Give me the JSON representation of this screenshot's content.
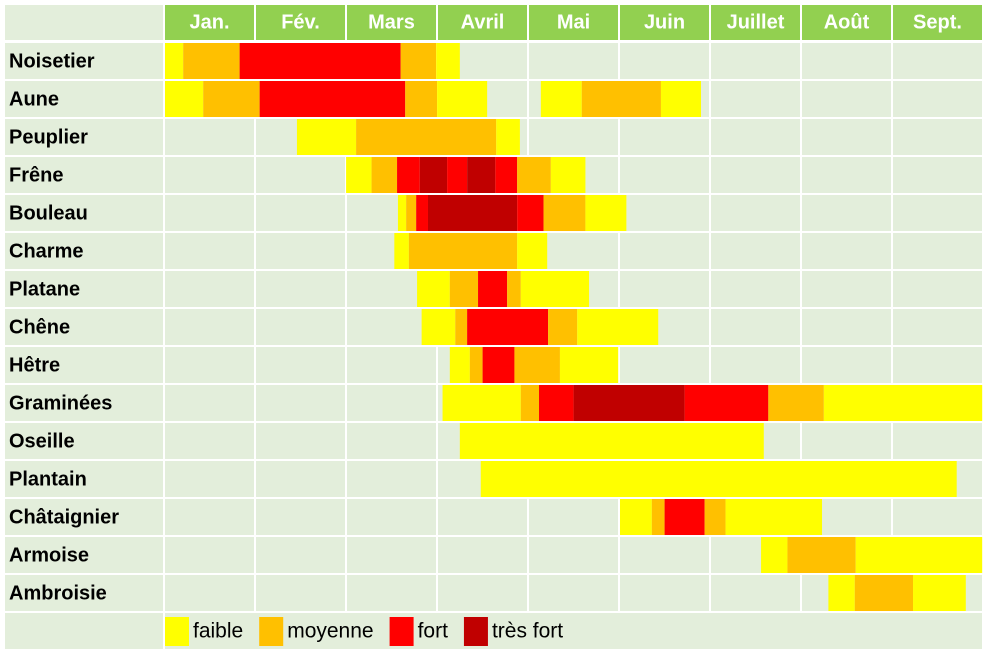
{
  "chart_data": {
    "type": "calendar",
    "categories": [
      "Jan.",
      "Fév.",
      "Mars",
      "Avril",
      "Mai",
      "Juin",
      "Juillet",
      "Août",
      "Sept."
    ],
    "xlim": [
      0,
      9
    ],
    "series": [
      {
        "name": "faible",
        "color": "#ffff00"
      },
      {
        "name": "moyenne",
        "color": "#ffc000"
      },
      {
        "name": "fort",
        "color": "#ff0000"
      },
      {
        "name": "très fort",
        "color": "#c00000"
      }
    ],
    "rows": [
      {
        "name": "Noisetier",
        "segments": [
          {
            "start": 0,
            "end": 0.2,
            "level": 0
          },
          {
            "start": 0.2,
            "end": 0.82,
            "level": 1
          },
          {
            "start": 0.82,
            "end": 2.59,
            "level": 2
          },
          {
            "start": 2.59,
            "end": 2.98,
            "level": 1
          },
          {
            "start": 2.98,
            "end": 3.24,
            "level": 0
          }
        ]
      },
      {
        "name": "Aune",
        "segments": [
          {
            "start": 0,
            "end": 0.42,
            "level": 0
          },
          {
            "start": 0.42,
            "end": 1.04,
            "level": 1
          },
          {
            "start": 1.04,
            "end": 2.64,
            "level": 2
          },
          {
            "start": 2.64,
            "end": 2.99,
            "level": 1
          },
          {
            "start": 2.99,
            "end": 3.54,
            "level": 0
          },
          {
            "start": 4.13,
            "end": 4.58,
            "level": 0
          },
          {
            "start": 4.58,
            "end": 5.45,
            "level": 1
          },
          {
            "start": 5.45,
            "end": 5.89,
            "level": 0
          }
        ]
      },
      {
        "name": "Peuplier",
        "segments": [
          {
            "start": 1.45,
            "end": 2.1,
            "level": 0
          },
          {
            "start": 2.1,
            "end": 3.64,
            "level": 1
          },
          {
            "start": 3.64,
            "end": 3.9,
            "level": 0
          }
        ]
      },
      {
        "name": "Frêne",
        "segments": [
          {
            "start": 1.99,
            "end": 2.27,
            "level": 0
          },
          {
            "start": 2.27,
            "end": 2.55,
            "level": 1
          },
          {
            "start": 2.55,
            "end": 2.8,
            "level": 2
          },
          {
            "start": 2.8,
            "end": 3.1,
            "level": 3
          },
          {
            "start": 3.1,
            "end": 3.32,
            "level": 2
          },
          {
            "start": 3.32,
            "end": 3.63,
            "level": 3
          },
          {
            "start": 3.63,
            "end": 3.87,
            "level": 2
          },
          {
            "start": 3.87,
            "end": 4.24,
            "level": 1
          },
          {
            "start": 4.24,
            "end": 4.62,
            "level": 0
          }
        ]
      },
      {
        "name": "Bouleau",
        "segments": [
          {
            "start": 2.56,
            "end": 2.65,
            "level": 0
          },
          {
            "start": 2.65,
            "end": 2.76,
            "level": 1
          },
          {
            "start": 2.76,
            "end": 2.89,
            "level": 2
          },
          {
            "start": 2.89,
            "end": 3.87,
            "level": 3
          },
          {
            "start": 3.87,
            "end": 4.16,
            "level": 2
          },
          {
            "start": 4.16,
            "end": 4.62,
            "level": 1
          },
          {
            "start": 4.62,
            "end": 5.07,
            "level": 0
          }
        ]
      },
      {
        "name": "Charme",
        "segments": [
          {
            "start": 2.52,
            "end": 2.68,
            "level": 0
          },
          {
            "start": 2.68,
            "end": 3.87,
            "level": 1
          },
          {
            "start": 3.87,
            "end": 4.2,
            "level": 0
          }
        ]
      },
      {
        "name": "Platane",
        "segments": [
          {
            "start": 2.77,
            "end": 3.13,
            "level": 0
          },
          {
            "start": 3.13,
            "end": 3.44,
            "level": 1
          },
          {
            "start": 3.44,
            "end": 3.76,
            "level": 2
          },
          {
            "start": 3.76,
            "end": 3.91,
            "level": 1
          },
          {
            "start": 3.91,
            "end": 4.66,
            "level": 0
          }
        ]
      },
      {
        "name": "Chêne",
        "segments": [
          {
            "start": 2.82,
            "end": 3.19,
            "level": 0
          },
          {
            "start": 3.19,
            "end": 3.32,
            "level": 1
          },
          {
            "start": 3.32,
            "end": 4.21,
            "level": 2
          },
          {
            "start": 4.21,
            "end": 4.53,
            "level": 1
          },
          {
            "start": 4.53,
            "end": 5.42,
            "level": 0
          }
        ]
      },
      {
        "name": "Hêtre",
        "segments": [
          {
            "start": 3.13,
            "end": 3.35,
            "level": 0
          },
          {
            "start": 3.35,
            "end": 3.49,
            "level": 1
          },
          {
            "start": 3.49,
            "end": 3.84,
            "level": 2
          },
          {
            "start": 3.84,
            "end": 4.34,
            "level": 1
          },
          {
            "start": 4.34,
            "end": 4.98,
            "level": 0
          }
        ]
      },
      {
        "name": "Graminées",
        "segments": [
          {
            "start": 3.05,
            "end": 3.91,
            "level": 0
          },
          {
            "start": 3.91,
            "end": 4.11,
            "level": 1
          },
          {
            "start": 4.11,
            "end": 4.49,
            "level": 2
          },
          {
            "start": 4.49,
            "end": 5.71,
            "level": 3
          },
          {
            "start": 5.71,
            "end": 6.63,
            "level": 2
          },
          {
            "start": 6.63,
            "end": 7.24,
            "level": 1
          },
          {
            "start": 7.24,
            "end": 8.98,
            "level": 0
          }
        ]
      },
      {
        "name": "Oseille",
        "segments": [
          {
            "start": 3.24,
            "end": 6.58,
            "level": 0
          }
        ]
      },
      {
        "name": "Plantain",
        "segments": [
          {
            "start": 3.47,
            "end": 8.7,
            "level": 0
          }
        ]
      },
      {
        "name": "Châtaignier",
        "segments": [
          {
            "start": 5.0,
            "end": 5.35,
            "level": 0
          },
          {
            "start": 5.35,
            "end": 5.49,
            "level": 1
          },
          {
            "start": 5.49,
            "end": 5.93,
            "level": 2
          },
          {
            "start": 5.93,
            "end": 6.16,
            "level": 1
          },
          {
            "start": 6.16,
            "end": 7.22,
            "level": 0
          }
        ]
      },
      {
        "name": "Armoise",
        "segments": [
          {
            "start": 6.55,
            "end": 6.84,
            "level": 0
          },
          {
            "start": 6.84,
            "end": 7.59,
            "level": 1
          },
          {
            "start": 7.59,
            "end": 8.98,
            "level": 0
          }
        ]
      },
      {
        "name": "Ambroisie",
        "segments": [
          {
            "start": 7.29,
            "end": 7.58,
            "level": 0
          },
          {
            "start": 7.58,
            "end": 8.22,
            "level": 1
          },
          {
            "start": 8.22,
            "end": 8.8,
            "level": 0
          }
        ]
      }
    ]
  }
}
